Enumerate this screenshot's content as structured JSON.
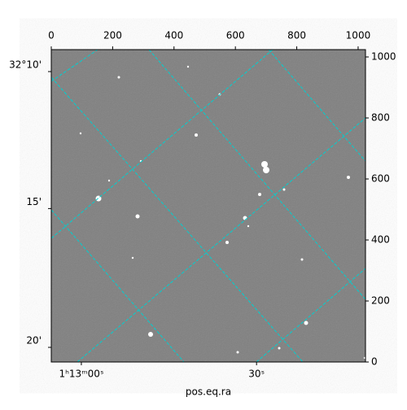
{
  "chart_data": {
    "type": "image",
    "xlabel": "pos.eq.ra",
    "xlim": [
      0,
      1024
    ],
    "ylim": [
      0,
      1024
    ],
    "xticks": [
      0,
      200,
      400,
      600,
      800,
      1000
    ],
    "yticks": [
      0,
      200,
      400,
      600,
      800,
      1000
    ],
    "ra_ticks": [
      {
        "value": 98,
        "label": "1ʰ13ᵐ00ˢ"
      },
      {
        "value": 669,
        "label": "30ˢ"
      }
    ],
    "dec_ticks": [
      {
        "value": 952,
        "label": "32°10'"
      },
      {
        "value": 503,
        "label": "15'"
      },
      {
        "value": 48,
        "label": "20'"
      }
    ],
    "grid_color": "#00d0d0"
  }
}
